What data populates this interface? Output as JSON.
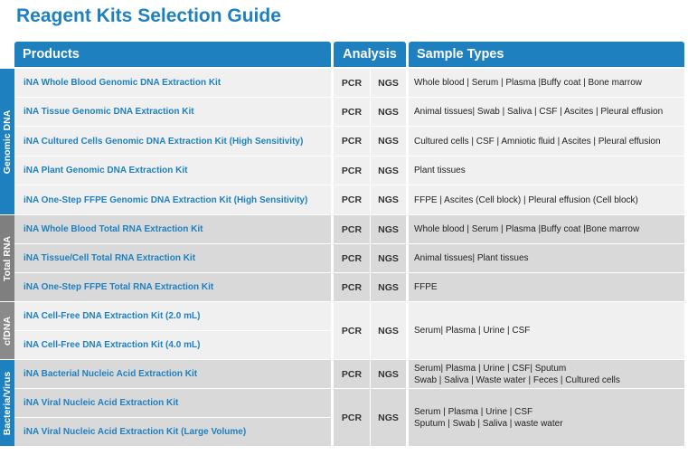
{
  "title": "Reagent Kits Selection Guide",
  "headers": {
    "products": "Products",
    "analysis": "Analysis",
    "samples": "Sample Types"
  },
  "colors": {
    "accent": "#1f80c0",
    "side_dark": "#1f80c0",
    "side_light": "#7f7f7f",
    "row_light": "#f0f0f0",
    "row_gray": "#d9d9d9"
  },
  "groups": [
    {
      "label": "Genomic DNA"
    },
    {
      "label": "Total RNA"
    },
    {
      "label": "cfDNA"
    },
    {
      "label": "Bacteria/Virus"
    }
  ],
  "rows": [
    {
      "product": "iNA Whole Blood Genomic DNA Extraction Kit",
      "pcr": "PCR",
      "ngs": "NGS",
      "samples": "Whole blood | Serum | Plasma |Buffy coat | Bone marrow"
    },
    {
      "product": "iNA Tissue Genomic DNA Extraction Kit",
      "pcr": "PCR",
      "ngs": "NGS",
      "samples": "Animal tissues| Swab | Saliva | CSF | Ascites | Pleural effusion"
    },
    {
      "product": "iNA Cultured Cells Genomic DNA Extraction Kit (High Sensitivity)",
      "pcr": "PCR",
      "ngs": "NGS",
      "samples": "Cultured cells | CSF | Amniotic fluid | Ascites | Pleural effusion"
    },
    {
      "product": "iNA Plant Genomic DNA Extraction Kit",
      "pcr": "PCR",
      "ngs": "NGS",
      "samples": "Plant tissues"
    },
    {
      "product": "iNA One-Step FFPE Genomic DNA Extraction Kit (High Sensitivity)",
      "pcr": "PCR",
      "ngs": "NGS",
      "samples": "FFPE | Ascites (Cell block) | Pleural effusion (Cell block)"
    },
    {
      "product": "iNA Whole Blood Total RNA Extraction Kit",
      "pcr": "PCR",
      "ngs": "NGS",
      "samples": "Whole blood | Serum | Plasma |Buffy coat |Bone marrow"
    },
    {
      "product": "iNA Tissue/Cell Total RNA Extraction Kit",
      "pcr": "PCR",
      "ngs": "NGS",
      "samples": "Animal tissues| Plant tissues"
    },
    {
      "product": "iNA One-Step FFPE Total RNA Extraction Kit",
      "pcr": "PCR",
      "ngs": "NGS",
      "samples": "FFPE"
    },
    {
      "product": "iNA Cell-Free DNA Extraction Kit (2.0 mL)"
    },
    {
      "product": "iNA Cell-Free DNA Extraction Kit (4.0 mL)"
    },
    {
      "product": "iNA Bacterial Nucleic Acid Extraction Kit",
      "pcr": "PCR",
      "ngs": "NGS",
      "samples": "Serum| Plasma | Urine | CSF| Sputum",
      "samples2": "Swab | Saliva | Waste water | Feces | Cultured cells"
    },
    {
      "product": "iNA Viral Nucleic Acid Extraction Kit"
    },
    {
      "product": "iNA Viral Nucleic Acid Extraction Kit (Large Volume)"
    }
  ],
  "merged": [
    {
      "pcr": "PCR",
      "ngs": "NGS",
      "samples": "Serum| Plasma | Urine | CSF"
    },
    {
      "pcr": "PCR",
      "ngs": "NGS",
      "samples": "Serum | Plasma | Urine | CSF",
      "samples2": "Sputum | Swab | Saliva | waste water"
    }
  ]
}
